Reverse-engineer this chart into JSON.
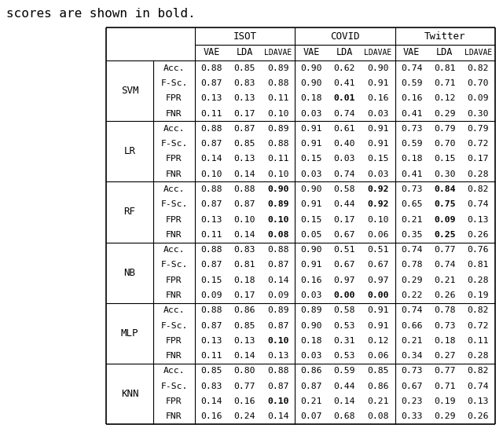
{
  "title_text": "scores are shown in bold.",
  "datasets": [
    "ISOT",
    "COVID",
    "Twitter"
  ],
  "models": [
    "SVM",
    "LR",
    "RF",
    "NB",
    "MLP",
    "KNN"
  ],
  "metrics": [
    "Acc.",
    "F-Sc.",
    "FPR",
    "FNR"
  ],
  "table_data": {
    "SVM": {
      "Acc.": {
        "ISOT": [
          "0.88",
          "0.85",
          "0.89"
        ],
        "COVID": [
          "0.90",
          "0.62",
          "0.90"
        ],
        "Twitter": [
          "0.74",
          "0.81",
          "0.82"
        ]
      },
      "F-Sc.": {
        "ISOT": [
          "0.87",
          "0.83",
          "0.88"
        ],
        "COVID": [
          "0.90",
          "0.41",
          "0.91"
        ],
        "Twitter": [
          "0.59",
          "0.71",
          "0.70"
        ]
      },
      "FPR": {
        "ISOT": [
          "0.13",
          "0.13",
          "0.11"
        ],
        "COVID": [
          "0.18",
          "0.01",
          "0.16"
        ],
        "Twitter": [
          "0.16",
          "0.12",
          "0.09"
        ]
      },
      "FNR": {
        "ISOT": [
          "0.11",
          "0.17",
          "0.10"
        ],
        "COVID": [
          "0.03",
          "0.74",
          "0.03"
        ],
        "Twitter": [
          "0.41",
          "0.29",
          "0.30"
        ]
      }
    },
    "LR": {
      "Acc.": {
        "ISOT": [
          "0.88",
          "0.87",
          "0.89"
        ],
        "COVID": [
          "0.91",
          "0.61",
          "0.91"
        ],
        "Twitter": [
          "0.73",
          "0.79",
          "0.79"
        ]
      },
      "F-Sc.": {
        "ISOT": [
          "0.87",
          "0.85",
          "0.88"
        ],
        "COVID": [
          "0.91",
          "0.40",
          "0.91"
        ],
        "Twitter": [
          "0.59",
          "0.70",
          "0.72"
        ]
      },
      "FPR": {
        "ISOT": [
          "0.14",
          "0.13",
          "0.11"
        ],
        "COVID": [
          "0.15",
          "0.03",
          "0.15"
        ],
        "Twitter": [
          "0.18",
          "0.15",
          "0.17"
        ]
      },
      "FNR": {
        "ISOT": [
          "0.10",
          "0.14",
          "0.10"
        ],
        "COVID": [
          "0.03",
          "0.74",
          "0.03"
        ],
        "Twitter": [
          "0.41",
          "0.30",
          "0.28"
        ]
      }
    },
    "RF": {
      "Acc.": {
        "ISOT": [
          "0.88",
          "0.88",
          "0.90"
        ],
        "COVID": [
          "0.90",
          "0.58",
          "0.92"
        ],
        "Twitter": [
          "0.73",
          "0.84",
          "0.82"
        ]
      },
      "F-Sc.": {
        "ISOT": [
          "0.87",
          "0.87",
          "0.89"
        ],
        "COVID": [
          "0.91",
          "0.44",
          "0.92"
        ],
        "Twitter": [
          "0.65",
          "0.75",
          "0.74"
        ]
      },
      "FPR": {
        "ISOT": [
          "0.13",
          "0.10",
          "0.10"
        ],
        "COVID": [
          "0.15",
          "0.17",
          "0.10"
        ],
        "Twitter": [
          "0.21",
          "0.09",
          "0.13"
        ]
      },
      "FNR": {
        "ISOT": [
          "0.11",
          "0.14",
          "0.08"
        ],
        "COVID": [
          "0.05",
          "0.67",
          "0.06"
        ],
        "Twitter": [
          "0.35",
          "0.25",
          "0.26"
        ]
      }
    },
    "NB": {
      "Acc.": {
        "ISOT": [
          "0.88",
          "0.83",
          "0.88"
        ],
        "COVID": [
          "0.90",
          "0.51",
          "0.51"
        ],
        "Twitter": [
          "0.74",
          "0.77",
          "0.76"
        ]
      },
      "F-Sc.": {
        "ISOT": [
          "0.87",
          "0.81",
          "0.87"
        ],
        "COVID": [
          "0.91",
          "0.67",
          "0.67"
        ],
        "Twitter": [
          "0.78",
          "0.74",
          "0.81"
        ]
      },
      "FPR": {
        "ISOT": [
          "0.15",
          "0.18",
          "0.14"
        ],
        "COVID": [
          "0.16",
          "0.97",
          "0.97"
        ],
        "Twitter": [
          "0.29",
          "0.21",
          "0.28"
        ]
      },
      "FNR": {
        "ISOT": [
          "0.09",
          "0.17",
          "0.09"
        ],
        "COVID": [
          "0.03",
          "0.00",
          "0.00"
        ],
        "Twitter": [
          "0.22",
          "0.26",
          "0.19"
        ]
      }
    },
    "MLP": {
      "Acc.": {
        "ISOT": [
          "0.88",
          "0.86",
          "0.89"
        ],
        "COVID": [
          "0.89",
          "0.58",
          "0.91"
        ],
        "Twitter": [
          "0.74",
          "0.78",
          "0.82"
        ]
      },
      "F-Sc.": {
        "ISOT": [
          "0.87",
          "0.85",
          "0.87"
        ],
        "COVID": [
          "0.90",
          "0.53",
          "0.91"
        ],
        "Twitter": [
          "0.66",
          "0.73",
          "0.72"
        ]
      },
      "FPR": {
        "ISOT": [
          "0.13",
          "0.13",
          "0.10"
        ],
        "COVID": [
          "0.18",
          "0.31",
          "0.12"
        ],
        "Twitter": [
          "0.21",
          "0.18",
          "0.11"
        ]
      },
      "FNR": {
        "ISOT": [
          "0.11",
          "0.14",
          "0.13"
        ],
        "COVID": [
          "0.03",
          "0.53",
          "0.06"
        ],
        "Twitter": [
          "0.34",
          "0.27",
          "0.28"
        ]
      }
    },
    "KNN": {
      "Acc.": {
        "ISOT": [
          "0.85",
          "0.80",
          "0.88"
        ],
        "COVID": [
          "0.86",
          "0.59",
          "0.85"
        ],
        "Twitter": [
          "0.73",
          "0.77",
          "0.82"
        ]
      },
      "F-Sc.": {
        "ISOT": [
          "0.83",
          "0.77",
          "0.87"
        ],
        "COVID": [
          "0.87",
          "0.44",
          "0.86"
        ],
        "Twitter": [
          "0.67",
          "0.71",
          "0.74"
        ]
      },
      "FPR": {
        "ISOT": [
          "0.14",
          "0.16",
          "0.10"
        ],
        "COVID": [
          "0.21",
          "0.14",
          "0.21"
        ],
        "Twitter": [
          "0.23",
          "0.19",
          "0.13"
        ]
      },
      "FNR": {
        "ISOT": [
          "0.16",
          "0.24",
          "0.14"
        ],
        "COVID": [
          "0.07",
          "0.68",
          "0.08"
        ],
        "Twitter": [
          "0.33",
          "0.29",
          "0.26"
        ]
      }
    }
  },
  "bold_set": [
    [
      "SVM",
      "FPR",
      "COVID",
      1
    ],
    [
      "RF",
      "Acc.",
      "ISOT",
      2
    ],
    [
      "RF",
      "Acc.",
      "COVID",
      2
    ],
    [
      "RF",
      "Acc.",
      "Twitter",
      1
    ],
    [
      "RF",
      "F-Sc.",
      "ISOT",
      2
    ],
    [
      "RF",
      "F-Sc.",
      "COVID",
      2
    ],
    [
      "RF",
      "F-Sc.",
      "Twitter",
      1
    ],
    [
      "RF",
      "FPR",
      "ISOT",
      2
    ],
    [
      "RF",
      "FPR",
      "Twitter",
      1
    ],
    [
      "RF",
      "FNR",
      "ISOT",
      2
    ],
    [
      "RF",
      "FNR",
      "Twitter",
      1
    ],
    [
      "NB",
      "FNR",
      "COVID",
      1
    ],
    [
      "NB",
      "FNR",
      "COVID",
      2
    ],
    [
      "MLP",
      "FPR",
      "ISOT",
      2
    ],
    [
      "KNN",
      "FPR",
      "ISOT",
      2
    ]
  ],
  "figsize": [
    6.4,
    5.5
  ],
  "dpi": 100
}
